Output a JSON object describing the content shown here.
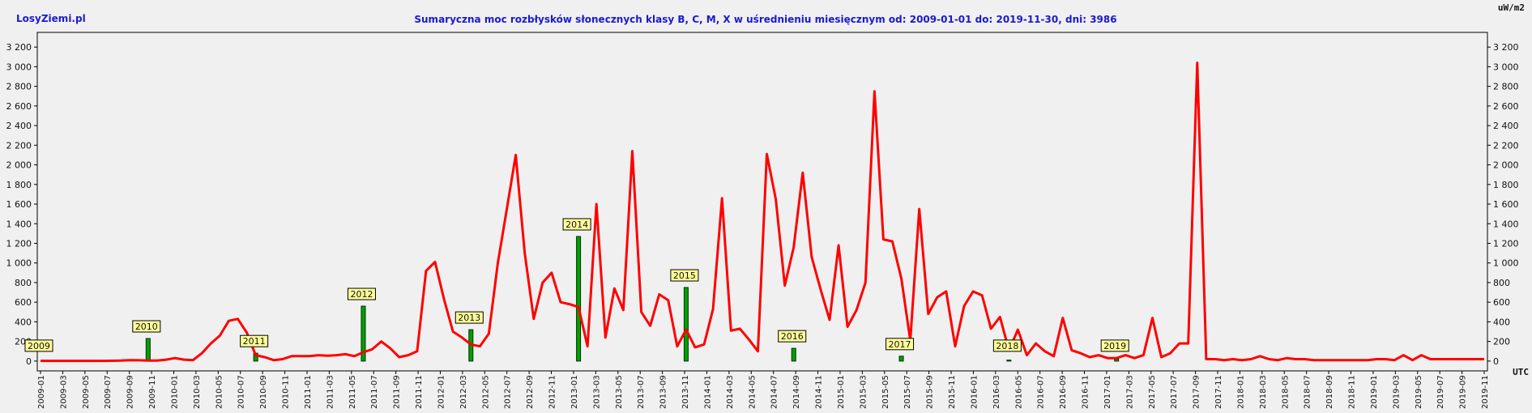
{
  "header": {
    "site": "LosyZiemi.pl",
    "title": "Sumaryczna moc rozbłysków słonecznych klasy B, C, M, X w uśrednieniu miesięcznym od: 2009-01-01 do: 2019-11-30, dni: 3986",
    "unit": "uW/m2",
    "x_unit": "UTC"
  },
  "chart_data": {
    "type": "line",
    "title": "Sumaryczna moc rozbłysków słonecznych klasy B, C, M, X w uśrednieniu miesięcznym od: 2009-01-01 do: 2019-11-30, dni: 3986",
    "ylabel": "uW/m2",
    "xlabel": "UTC",
    "ylim": [
      -100,
      3350
    ],
    "y_ticks": [
      0,
      200,
      400,
      600,
      800,
      1000,
      1200,
      1400,
      1600,
      1800,
      2000,
      2200,
      2400,
      2600,
      2800,
      3000,
      3200
    ],
    "y_tick_labels": [
      "0",
      "200",
      "400",
      "600",
      "800",
      "1 000",
      "1 200",
      "1 400",
      "1 600",
      "1 800",
      "2 000",
      "2 200",
      "2 400",
      "2 600",
      "2 800",
      "3 000",
      "3 200"
    ],
    "grid": true,
    "x_tick_labels": [
      "2009-01",
      "2009-03",
      "2009-05",
      "2009-07",
      "2009-09",
      "2009-11",
      "2010-01",
      "2010-03",
      "2010-05",
      "2010-07",
      "2010-09",
      "2010-11",
      "2011-01",
      "2011-03",
      "2011-05",
      "2011-07",
      "2011-09",
      "2011-11",
      "2012-01",
      "2012-03",
      "2012-05",
      "2012-07",
      "2012-09",
      "2012-11",
      "2013-01",
      "2013-03",
      "2013-05",
      "2013-07",
      "2013-09",
      "2013-11",
      "2014-01",
      "2014-03",
      "2014-05",
      "2014-07",
      "2014-09",
      "2014-11",
      "2015-01",
      "2015-03",
      "2015-05",
      "2015-07",
      "2015-09",
      "2015-11",
      "2016-01",
      "2016-03",
      "2016-05",
      "2016-07",
      "2016-09",
      "2016-11",
      "2017-01",
      "2017-03",
      "2017-05",
      "2017-07",
      "2017-09",
      "2017-11",
      "2018-01",
      "2018-03",
      "2018-05",
      "2018-07",
      "2018-09",
      "2018-11",
      "2019-01",
      "2019-03",
      "2019-05",
      "2019-07",
      "2019-09",
      "2019-11"
    ],
    "series": [
      {
        "color": "#ff0000",
        "values": [
          2,
          2,
          2,
          2,
          2,
          2,
          2,
          2,
          3,
          5,
          10,
          8,
          5,
          5,
          15,
          30,
          15,
          10,
          80,
          180,
          260,
          410,
          430,
          290,
          60,
          40,
          10,
          20,
          50,
          50,
          50,
          60,
          55,
          60,
          70,
          50,
          90,
          120,
          200,
          130,
          40,
          60,
          100,
          920,
          1010,
          630,
          300,
          240,
          170,
          150,
          280,
          1000,
          1550,
          2100,
          1100,
          430,
          800,
          900,
          600,
          580,
          550,
          150,
          1600,
          240,
          740,
          520,
          2140,
          500,
          360,
          680,
          620,
          150,
          320,
          140,
          170,
          530,
          1660,
          310,
          330,
          220,
          100,
          2110,
          1650,
          770,
          1160,
          1920,
          1060,
          730,
          420,
          1180,
          350,
          520,
          800,
          2750,
          1240,
          1220,
          840,
          210,
          1550,
          480,
          650,
          710,
          150,
          560,
          710,
          670,
          330,
          450,
          110,
          320,
          60,
          180,
          100,
          50,
          440,
          110,
          80,
          40,
          60,
          30,
          30,
          60,
          30,
          60,
          440,
          40,
          80,
          180,
          180,
          3040,
          20,
          20,
          10,
          20,
          10,
          20,
          50,
          20,
          10,
          30,
          20,
          20,
          10,
          10,
          10,
          10,
          10,
          10,
          10,
          20,
          20,
          10,
          60,
          10,
          60,
          20,
          20,
          20,
          20,
          20,
          20,
          20
        ]
      }
    ],
    "year_bars": [
      {
        "label": "2009",
        "value": 0
      },
      {
        "label": "2010",
        "value": 230
      },
      {
        "label": "2011",
        "value": 80
      },
      {
        "label": "2012",
        "value": 560
      },
      {
        "label": "2013",
        "value": 320
      },
      {
        "label": "2014",
        "value": 1270
      },
      {
        "label": "2015",
        "value": 750
      },
      {
        "label": "2016",
        "value": 130
      },
      {
        "label": "2017",
        "value": 50
      },
      {
        "label": "2018",
        "value": 10
      },
      {
        "label": "2019",
        "value": 20
      }
    ],
    "colors": {
      "line": "#ff0000",
      "bar_fill": "#00a000",
      "bar_edge": "#003000",
      "marker_fill": "#ffff99",
      "grid": "#7a7a7a",
      "title": "#1a1ad0"
    }
  }
}
